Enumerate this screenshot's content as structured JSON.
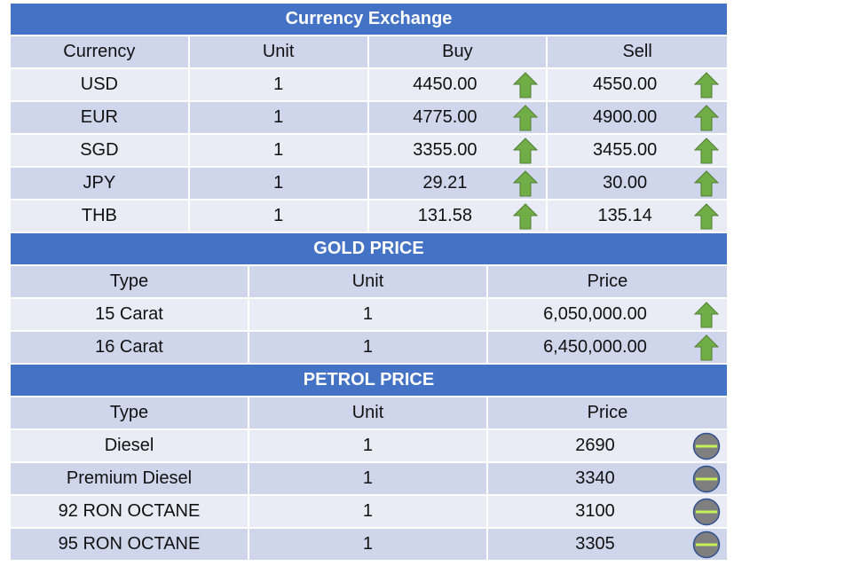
{
  "currency": {
    "title": "Currency Exchange",
    "headers": [
      "Currency",
      "Unit",
      "Buy",
      "Sell"
    ],
    "rows": [
      {
        "currency": "USD",
        "unit": "1",
        "buy": "4450.00",
        "sell": "4550.00",
        "buy_trend": "up-arrow-icon",
        "sell_trend": "up-arrow-icon"
      },
      {
        "currency": "EUR",
        "unit": "1",
        "buy": "4775.00",
        "sell": "4900.00",
        "buy_trend": "up-arrow-icon",
        "sell_trend": "up-arrow-icon"
      },
      {
        "currency": "SGD",
        "unit": "1",
        "buy": "3355.00",
        "sell": "3455.00",
        "buy_trend": "up-arrow-icon",
        "sell_trend": "up-arrow-icon"
      },
      {
        "currency": "JPY",
        "unit": "1",
        "buy": "29.21",
        "sell": "30.00",
        "buy_trend": "up-arrow-icon",
        "sell_trend": "up-arrow-icon"
      },
      {
        "currency": "THB",
        "unit": "1",
        "buy": "131.58",
        "sell": "135.14",
        "buy_trend": "up-arrow-icon",
        "sell_trend": "up-arrow-icon"
      }
    ]
  },
  "gold": {
    "title": "GOLD PRICE",
    "headers": [
      "Type",
      "Unit",
      "Price"
    ],
    "rows": [
      {
        "type": "15 Carat",
        "unit": "1",
        "price": "6,050,000.00",
        "trend": "up-arrow-icon"
      },
      {
        "type": "16 Carat",
        "unit": "1",
        "price": "6,450,000.00",
        "trend": "up-arrow-icon"
      }
    ]
  },
  "petrol": {
    "title": "PETROL PRICE",
    "headers": [
      "Type",
      "Unit",
      "Price"
    ],
    "rows": [
      {
        "type": "Diesel",
        "unit": "1",
        "price": "2690",
        "trend": "no-change-icon"
      },
      {
        "type": "Premium Diesel",
        "unit": "1",
        "price": "3340",
        "trend": "no-change-icon"
      },
      {
        "type": "92 RON OCTANE",
        "unit": "1",
        "price": "3100",
        "trend": "no-change-icon"
      },
      {
        "type": "95 RON OCTANE",
        "unit": "1",
        "price": "3305",
        "trend": "no-change-icon"
      }
    ]
  },
  "colors": {
    "banner": "#4472c4",
    "row_dark": "#cfd5ea",
    "row_light": "#e9ebf5",
    "up_arrow": "#70ad47",
    "no_change": "#7f7f7f"
  }
}
